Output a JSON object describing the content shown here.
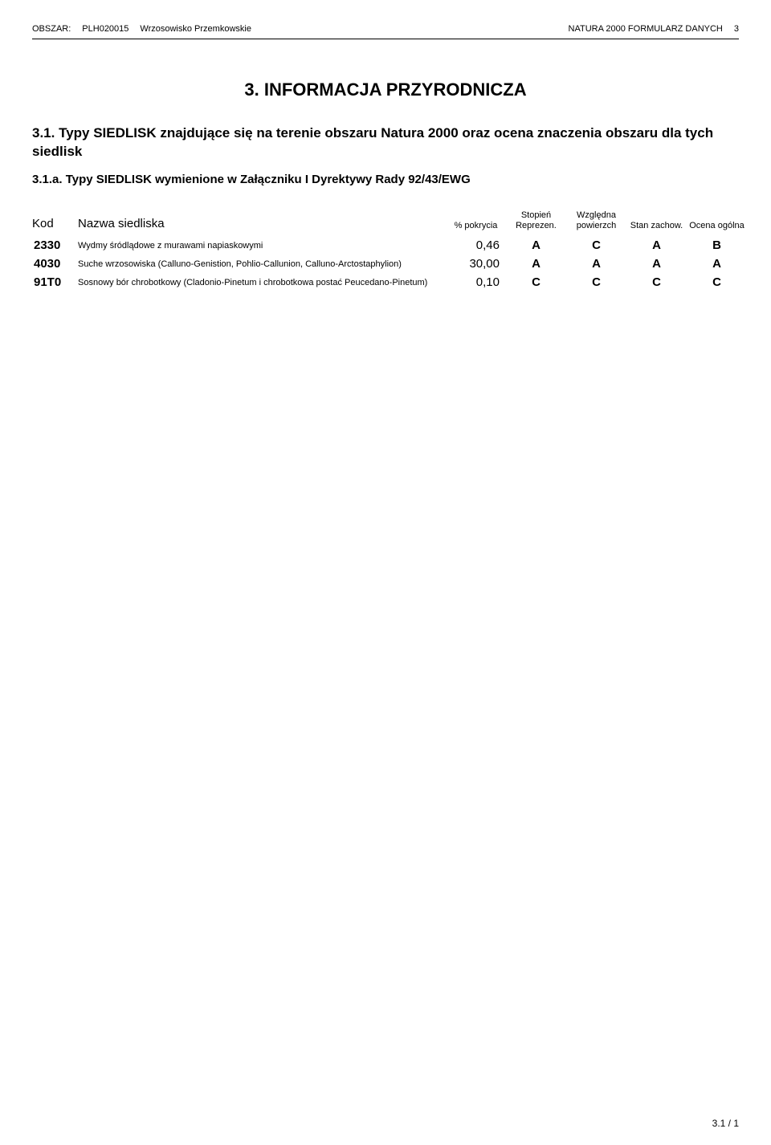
{
  "header": {
    "left_label": "OBSZAR:",
    "area_code": "PLH020015",
    "area_name": "Wrzosowisko Przemkowskie",
    "right_label": "NATURA 2000 FORMULARZ DANYCH",
    "page_num": "3"
  },
  "section_title": "3. INFORMACJA PRZYRODNICZA",
  "subsection_title": "3.1. Typy SIEDLISK znajdujące się na terenie obszaru Natura 2000 oraz ocena znaczenia obszaru dla tych siedlisk",
  "subsubsection_title": "3.1.a. Typy SIEDLISK wymienione w Załączniku I Dyrektywy Rady 92/43/EWG",
  "table": {
    "columns": {
      "kod": "Kod",
      "name": "Nazwa siedliska",
      "pct": "% pokrycia",
      "rep": "Stopień Reprezen.",
      "pow": "Względna powierzch",
      "zach": "Stan zachow.",
      "ocena": "Ocena ogólna"
    },
    "rows": [
      {
        "kod": "2330",
        "name": "Wydmy śródlądowe z murawami napiaskowymi",
        "pct": "0,46",
        "rep": "A",
        "pow": "C",
        "zach": "A",
        "ocena": "B"
      },
      {
        "kod": "4030",
        "name": "Suche wrzosowiska (Calluno-Genistion, Pohlio-Callunion, Calluno-Arctostaphylion)",
        "pct": "30,00",
        "rep": "A",
        "pow": "A",
        "zach": "A",
        "ocena": "A"
      },
      {
        "kod": "91T0",
        "name": "Sosnowy bór chrobotkowy (Cladonio-Pinetum i chrobotkowa postać Peucedano-Pinetum)",
        "pct": "0,10",
        "rep": "C",
        "pow": "C",
        "zach": "C",
        "ocena": "C"
      }
    ]
  },
  "footer": "3.1  /  1"
}
